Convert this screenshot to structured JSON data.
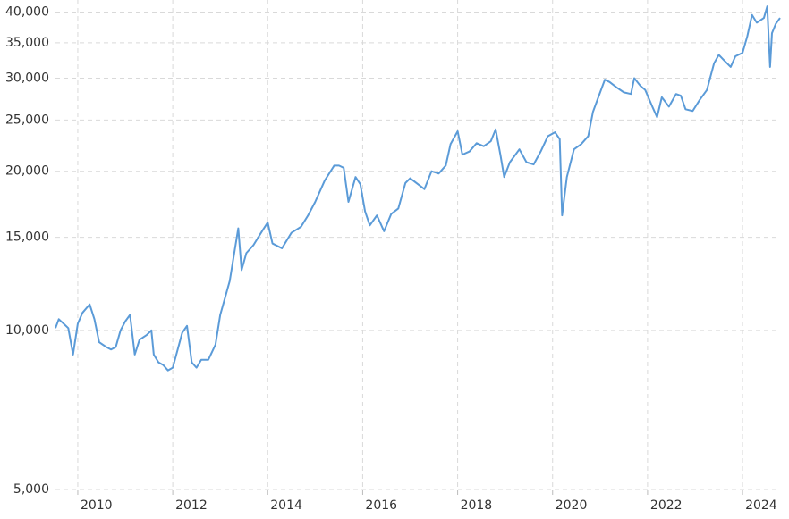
{
  "chart_data": {
    "type": "line",
    "log_y": true,
    "grid": true,
    "color": "#5b9bd8",
    "xlim": [
      2009.53,
      2024.79
    ],
    "xticks": [
      2010,
      2012,
      2014,
      2016,
      2018,
      2020,
      2022,
      2024
    ],
    "ylim": [
      5000,
      42000
    ],
    "yticks": [
      {
        "value": 5000,
        "label": "5,000"
      },
      {
        "value": 10000,
        "label": "10,000"
      },
      {
        "value": 15000,
        "label": "15,000"
      },
      {
        "value": 20000,
        "label": "20,000"
      },
      {
        "value": 25000,
        "label": "25,000"
      },
      {
        "value": 30000,
        "label": "30,000"
      },
      {
        "value": 35000,
        "label": "35,000"
      },
      {
        "value": 40000,
        "label": "40,000"
      }
    ],
    "x": [
      2009.53,
      2009.6,
      2009.7,
      2009.8,
      2009.9,
      2010.0,
      2010.1,
      2010.25,
      2010.35,
      2010.45,
      2010.6,
      2010.7,
      2010.8,
      2010.9,
      2011.0,
      2011.1,
      2011.2,
      2011.3,
      2011.45,
      2011.55,
      2011.6,
      2011.7,
      2011.8,
      2011.9,
      2012.0,
      2012.2,
      2012.3,
      2012.4,
      2012.5,
      2012.6,
      2012.75,
      2012.9,
      2013.0,
      2013.2,
      2013.38,
      2013.45,
      2013.55,
      2013.7,
      2013.9,
      2014.0,
      2014.1,
      2014.3,
      2014.5,
      2014.7,
      2014.85,
      2015.0,
      2015.2,
      2015.4,
      2015.5,
      2015.6,
      2015.7,
      2015.85,
      2015.95,
      2016.05,
      2016.15,
      2016.3,
      2016.45,
      2016.6,
      2016.75,
      2016.9,
      2017.0,
      2017.3,
      2017.45,
      2017.6,
      2017.75,
      2017.85,
      2018.0,
      2018.1,
      2018.25,
      2018.4,
      2018.55,
      2018.7,
      2018.8,
      2018.9,
      2018.98,
      2019.1,
      2019.3,
      2019.45,
      2019.6,
      2019.75,
      2019.9,
      2020.05,
      2020.15,
      2020.2,
      2020.3,
      2020.45,
      2020.6,
      2020.75,
      2020.85,
      2020.95,
      2021.1,
      2021.2,
      2021.35,
      2021.5,
      2021.65,
      2021.72,
      2021.85,
      2021.95,
      2022.1,
      2022.2,
      2022.3,
      2022.45,
      2022.6,
      2022.7,
      2022.8,
      2022.95,
      2023.1,
      2023.25,
      2023.4,
      2023.5,
      2023.6,
      2023.75,
      2023.85,
      2024.0,
      2024.1,
      2024.2,
      2024.3,
      2024.45,
      2024.52,
      2024.58,
      2024.62,
      2024.7,
      2024.79
    ],
    "values": [
      10100,
      10500,
      10300,
      10100,
      9000,
      10300,
      10800,
      11200,
      10500,
      9500,
      9300,
      9200,
      9300,
      10000,
      10400,
      10700,
      9000,
      9600,
      9800,
      10000,
      9000,
      8700,
      8600,
      8400,
      8500,
      9900,
      10200,
      8700,
      8500,
      8800,
      8800,
      9400,
      10700,
      12400,
      15600,
      13000,
      14000,
      14500,
      15500,
      16000,
      14600,
      14300,
      15300,
      15700,
      16500,
      17500,
      19200,
      20500,
      20500,
      20300,
      17500,
      19500,
      18900,
      16800,
      15800,
      16500,
      15400,
      16600,
      17000,
      19000,
      19400,
      18500,
      20000,
      19800,
      20500,
      22500,
      23800,
      21500,
      21800,
      22600,
      22300,
      22800,
      24000,
      21500,
      19500,
      20800,
      22000,
      20800,
      20600,
      21800,
      23300,
      23700,
      23000,
      16500,
      19500,
      22000,
      22500,
      23300,
      25900,
      27400,
      29800,
      29500,
      28800,
      28200,
      28000,
      30000,
      29000,
      28500,
      26500,
      25300,
      27600,
      26500,
      28000,
      27800,
      26200,
      26000,
      27300,
      28500,
      32000,
      33200,
      32500,
      31500,
      33000,
      33500,
      36000,
      39500,
      38200,
      39000,
      41000,
      31500,
      36500,
      38000,
      39000
    ]
  }
}
